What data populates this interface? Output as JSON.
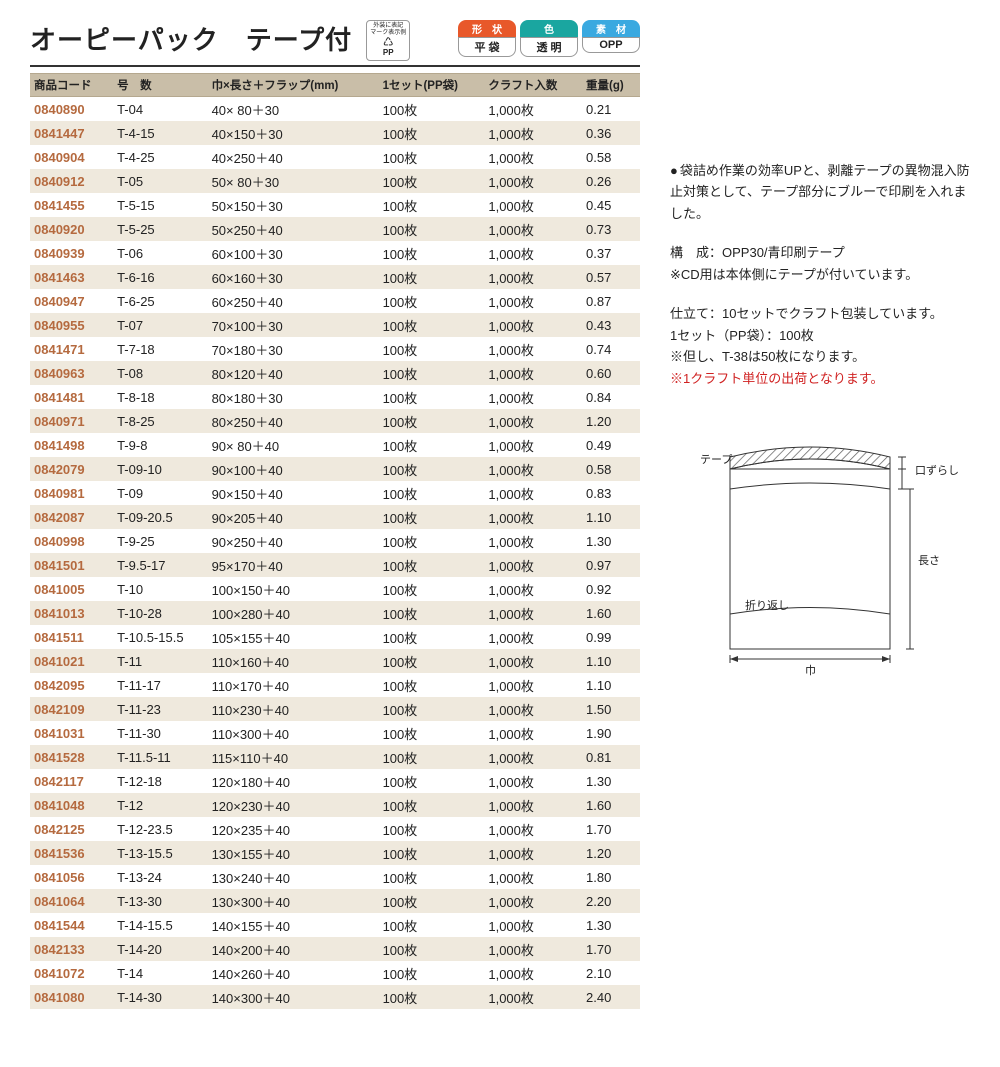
{
  "title": "オーピーパック　テープ付",
  "recycle_mark": {
    "top": "外装に表記",
    "mid": "マーク表示例",
    "bot": "PP"
  },
  "badges": [
    {
      "top_label": "形　状",
      "top_color": "#e8582a",
      "bottom_label": "平 袋"
    },
    {
      "top_label": "色",
      "top_color": "#1aa6a0",
      "bottom_label": "透 明"
    },
    {
      "top_label": "素　材",
      "top_color": "#3aa9e0",
      "bottom_label": "OPP"
    }
  ],
  "columns": [
    "商品コード",
    "号　数",
    "巾×長さ＋フラップ(mm)",
    "1セット(PP袋)",
    "クラフト入数",
    "重量(g)"
  ],
  "rows": [
    [
      "0840890",
      "T-04",
      "40× 80＋30",
      "100枚",
      "1,000枚",
      "0.21"
    ],
    [
      "0841447",
      "T-4-15",
      "40×150＋30",
      "100枚",
      "1,000枚",
      "0.36"
    ],
    [
      "0840904",
      "T-4-25",
      "40×250＋40",
      "100枚",
      "1,000枚",
      "0.58"
    ],
    [
      "0840912",
      "T-05",
      "50× 80＋30",
      "100枚",
      "1,000枚",
      "0.26"
    ],
    [
      "0841455",
      "T-5-15",
      "50×150＋30",
      "100枚",
      "1,000枚",
      "0.45"
    ],
    [
      "0840920",
      "T-5-25",
      "50×250＋40",
      "100枚",
      "1,000枚",
      "0.73"
    ],
    [
      "0840939",
      "T-06",
      "60×100＋30",
      "100枚",
      "1,000枚",
      "0.37"
    ],
    [
      "0841463",
      "T-6-16",
      "60×160＋30",
      "100枚",
      "1,000枚",
      "0.57"
    ],
    [
      "0840947",
      "T-6-25",
      "60×250＋40",
      "100枚",
      "1,000枚",
      "0.87"
    ],
    [
      "0840955",
      "T-07",
      "70×100＋30",
      "100枚",
      "1,000枚",
      "0.43"
    ],
    [
      "0841471",
      "T-7-18",
      "70×180＋30",
      "100枚",
      "1,000枚",
      "0.74"
    ],
    [
      "0840963",
      "T-08",
      "80×120＋40",
      "100枚",
      "1,000枚",
      "0.60"
    ],
    [
      "0841481",
      "T-8-18",
      "80×180＋30",
      "100枚",
      "1,000枚",
      "0.84"
    ],
    [
      "0840971",
      "T-8-25",
      "80×250＋40",
      "100枚",
      "1,000枚",
      "1.20"
    ],
    [
      "0841498",
      "T-9-8",
      "90× 80＋40",
      "100枚",
      "1,000枚",
      "0.49"
    ],
    [
      "0842079",
      "T-09-10",
      "90×100＋40",
      "100枚",
      "1,000枚",
      "0.58"
    ],
    [
      "0840981",
      "T-09",
      "90×150＋40",
      "100枚",
      "1,000枚",
      "0.83"
    ],
    [
      "0842087",
      "T-09-20.5",
      "90×205＋40",
      "100枚",
      "1,000枚",
      "1.10"
    ],
    [
      "0840998",
      "T-9-25",
      "90×250＋40",
      "100枚",
      "1,000枚",
      "1.30"
    ],
    [
      "0841501",
      "T-9.5-17",
      "95×170＋40",
      "100枚",
      "1,000枚",
      "0.97"
    ],
    [
      "0841005",
      "T-10",
      "100×150＋40",
      "100枚",
      "1,000枚",
      "0.92"
    ],
    [
      "0841013",
      "T-10-28",
      "100×280＋40",
      "100枚",
      "1,000枚",
      "1.60"
    ],
    [
      "0841511",
      "T-10.5-15.5",
      "105×155＋40",
      "100枚",
      "1,000枚",
      "0.99"
    ],
    [
      "0841021",
      "T-11",
      "110×160＋40",
      "100枚",
      "1,000枚",
      "1.10"
    ],
    [
      "0842095",
      "T-11-17",
      "110×170＋40",
      "100枚",
      "1,000枚",
      "1.10"
    ],
    [
      "0842109",
      "T-11-23",
      "110×230＋40",
      "100枚",
      "1,000枚",
      "1.50"
    ],
    [
      "0841031",
      "T-11-30",
      "110×300＋40",
      "100枚",
      "1,000枚",
      "1.90"
    ],
    [
      "0841528",
      "T-11.5-11",
      "115×110＋40",
      "100枚",
      "1,000枚",
      "0.81"
    ],
    [
      "0842117",
      "T-12-18",
      "120×180＋40",
      "100枚",
      "1,000枚",
      "1.30"
    ],
    [
      "0841048",
      "T-12",
      "120×230＋40",
      "100枚",
      "1,000枚",
      "1.60"
    ],
    [
      "0842125",
      "T-12-23.5",
      "120×235＋40",
      "100枚",
      "1,000枚",
      "1.70"
    ],
    [
      "0841536",
      "T-13-15.5",
      "130×155＋40",
      "100枚",
      "1,000枚",
      "1.20"
    ],
    [
      "0841056",
      "T-13-24",
      "130×240＋40",
      "100枚",
      "1,000枚",
      "1.80"
    ],
    [
      "0841064",
      "T-13-30",
      "130×300＋40",
      "100枚",
      "1,000枚",
      "2.20"
    ],
    [
      "0841544",
      "T-14-15.5",
      "140×155＋40",
      "100枚",
      "1,000枚",
      "1.30"
    ],
    [
      "0842133",
      "T-14-20",
      "140×200＋40",
      "100枚",
      "1,000枚",
      "1.70"
    ],
    [
      "0841072",
      "T-14",
      "140×260＋40",
      "100枚",
      "1,000枚",
      "2.10"
    ],
    [
      "0841080",
      "T-14-30",
      "140×300＋40",
      "100枚",
      "1,000枚",
      "2.40"
    ]
  ],
  "info": {
    "bullet1": "袋詰め作業の効率UPと、剥離テープの異物混入防止対策として、テープ部分にブルーで印刷を入れました。",
    "composition_label": "構　成：",
    "composition": "OPP30/青印刷テープ",
    "note1": "※CD用は本体側にテープが付いています。",
    "finish_label": "仕立て：",
    "finish": "10セットでクラフト包装しています。",
    "set": "1セット（PP袋）：100枚",
    "note2": "※但し、T-38は50枚になります。",
    "warn": "※1クラフト単位の出荷となります。"
  },
  "diagram_labels": {
    "tape": "テープ",
    "offset": "口ずらし",
    "length": "長さ",
    "fold": "折り返し",
    "width": "巾"
  },
  "alt_row_color": "#efe9dd",
  "header_row_color": "#c9bea8"
}
